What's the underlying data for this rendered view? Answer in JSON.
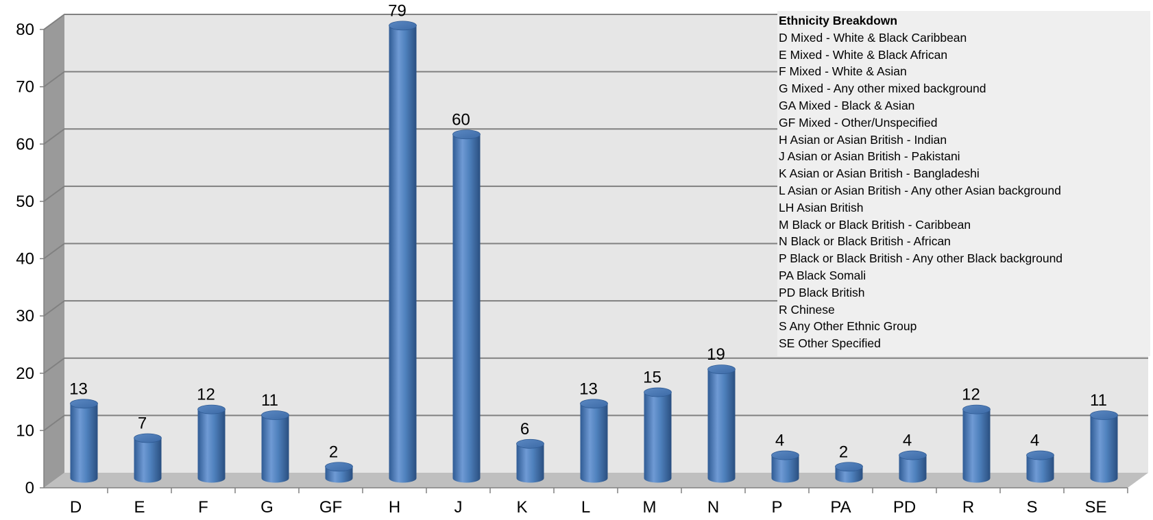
{
  "chart_data": {
    "type": "bar",
    "style": "3d-cylinder",
    "categories": [
      "D",
      "E",
      "F",
      "G",
      "GF",
      "H",
      "J",
      "K",
      "L",
      "M",
      "N",
      "P",
      "PA",
      "PD",
      "R",
      "S",
      "SE"
    ],
    "values": [
      13,
      7,
      12,
      11,
      2,
      79,
      60,
      6,
      13,
      15,
      19,
      4,
      2,
      4,
      12,
      4,
      11
    ],
    "ylim": [
      0,
      80
    ],
    "yticks": [
      0,
      10,
      20,
      30,
      40,
      50,
      60,
      70,
      80
    ],
    "grid": true,
    "data_labels": true,
    "colors": {
      "bar": "#4f81bd",
      "wall": "#e6e6e6",
      "floor": "#bfbfbf",
      "gridline": "#808080"
    },
    "legend": {
      "title": "Ethnicity Breakdown",
      "placement": "top-right",
      "items": [
        "D Mixed - White & Black Caribbean",
        "E Mixed - White & Black African",
        "F Mixed - White & Asian",
        "G Mixed - Any other mixed background",
        "GA Mixed - Black & Asian",
        "GF Mixed - Other/Unspecified",
        "H Asian or Asian British - Indian",
        "J Asian or Asian British - Pakistani",
        "K Asian or Asian British - Bangladeshi",
        "L Asian or Asian British - Any other Asian background",
        "LH Asian British",
        "M Black or Black British - Caribbean",
        "N Black or Black British - African",
        "P Black or Black British - Any other Black background",
        "PA Black Somali",
        "PD Black British",
        "R Chinese",
        "S Any Other Ethnic Group",
        "SE Other Specified"
      ]
    }
  }
}
